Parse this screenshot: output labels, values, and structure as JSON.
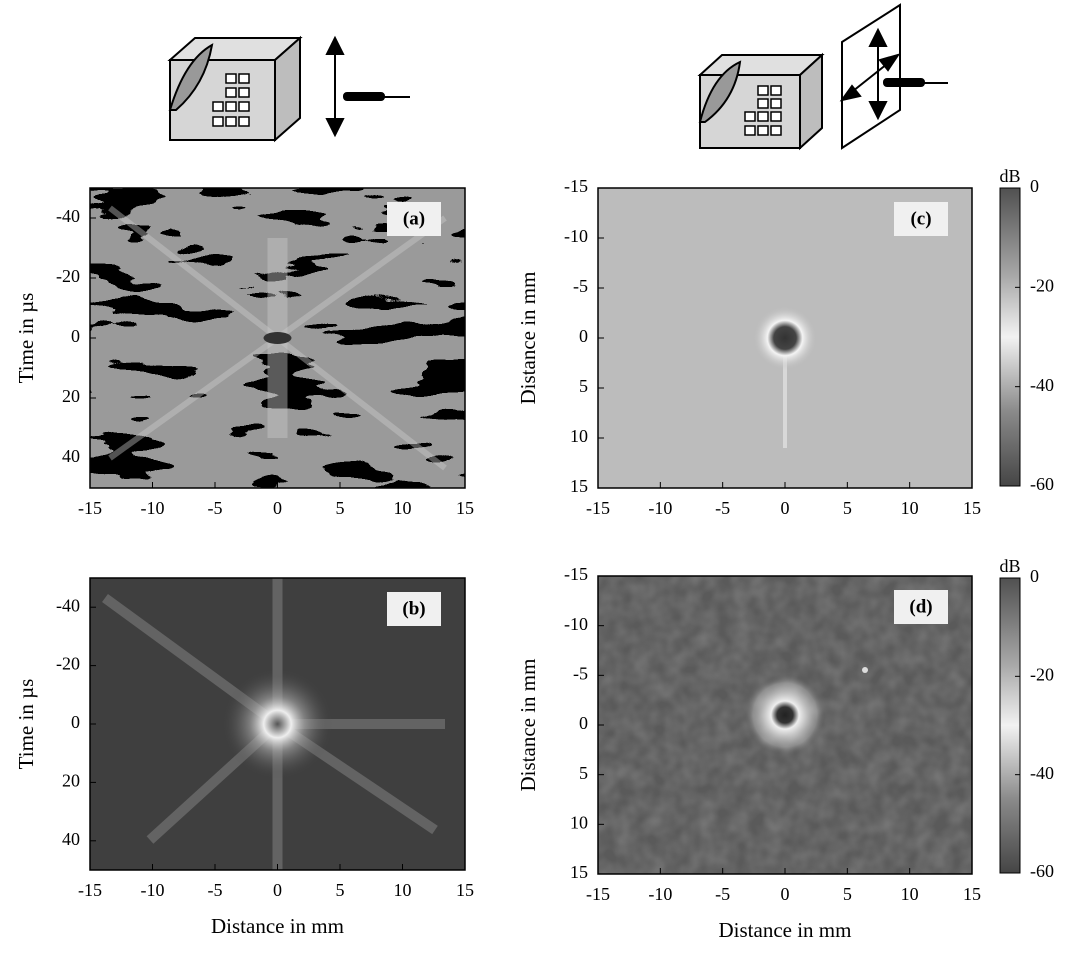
{
  "chart_data": [
    {
      "type": "heatmap",
      "panel_label": "(a)",
      "ylabel": "Time in µs",
      "xlim": [
        -15,
        15
      ],
      "xticks": [
        -15,
        -10,
        -5,
        0,
        5,
        10,
        15
      ],
      "ylim": [
        -50,
        50
      ],
      "yticks": [
        -40,
        -20,
        0,
        20,
        40
      ]
    },
    {
      "type": "heatmap",
      "panel_label": "(b)",
      "ylabel": "Time in µs",
      "xlabel": "Distance in mm",
      "xlim": [
        -15,
        15
      ],
      "xticks": [
        -15,
        -10,
        -5,
        0,
        5,
        10,
        15
      ],
      "ylim": [
        -50,
        50
      ],
      "yticks": [
        -40,
        -20,
        0,
        20,
        40
      ]
    },
    {
      "type": "heatmap",
      "panel_label": "(c)",
      "ylabel": "Distance in mm",
      "xlim": [
        -15,
        15
      ],
      "xticks": [
        -15,
        -10,
        -5,
        0,
        5,
        10,
        15
      ],
      "ylim": [
        -15,
        15
      ],
      "yticks": [
        -15,
        -10,
        -5,
        0,
        5,
        10,
        15
      ],
      "colorbar": {
        "label": "dB",
        "lim": [
          0,
          -60
        ],
        "ticks": [
          0,
          -20,
          -40,
          -60
        ]
      }
    },
    {
      "type": "heatmap",
      "panel_label": "(d)",
      "ylabel": "Distance in mm",
      "xlabel": "Distance in mm",
      "xlim": [
        -15,
        15
      ],
      "xticks": [
        -15,
        -10,
        -5,
        0,
        5,
        10,
        15
      ],
      "ylim": [
        -15,
        15
      ],
      "yticks": [
        -15,
        -10,
        -5,
        0,
        5,
        10,
        15
      ],
      "colorbar": {
        "label": "dB",
        "lim": [
          0,
          -60
        ],
        "ticks": [
          0,
          -20,
          -40,
          -60
        ]
      }
    }
  ]
}
